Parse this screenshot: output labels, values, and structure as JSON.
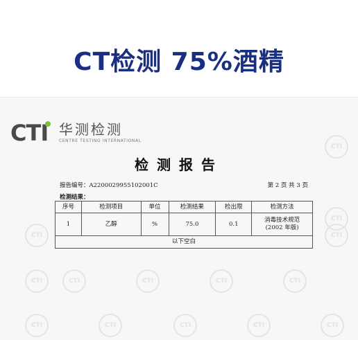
{
  "headline": "CT检测 75%酒精",
  "logo": {
    "mark": "CTI",
    "name_cn": "华测检测",
    "name_en": "CENTRE TESTING INTERNATIONAL"
  },
  "watermark_text": "CTI",
  "report": {
    "title": "检测报告",
    "report_number": "报告编号：A2200029955102001C",
    "page_info": "第 2 页 共 3 页",
    "results_label": "检测结果：",
    "columns": [
      "序号",
      "检测项目",
      "单位",
      "检测结果",
      "检出限",
      "检测方法"
    ],
    "rows": [
      {
        "no": "1",
        "item": "乙醇",
        "unit": "%",
        "result": "75.0",
        "limit": "0.1",
        "method_line1": "消毒技术规范",
        "method_line2": "(2002 年版)"
      }
    ],
    "blank_note": "以下空白"
  }
}
